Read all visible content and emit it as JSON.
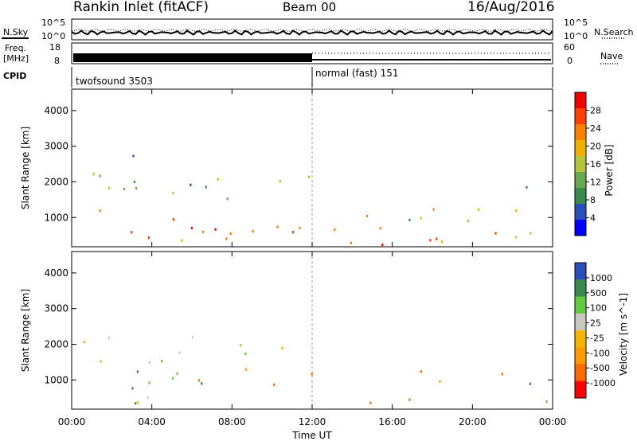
{
  "header": {
    "title": "Rankin Inlet (fitACF)",
    "beam": "Beam 00",
    "date": "16/Aug/2016"
  },
  "status_panel": {
    "nsky_label": "N.Sky",
    "nsky_ticks": [
      "10^5",
      "10^0"
    ],
    "nsearch_label": "N.Search",
    "nsearch_ticks": [
      "10^5",
      "10^0"
    ],
    "freq_label": "Freq.",
    "freq_unit": "[MHz]",
    "freq_ticks": [
      "18",
      "8"
    ],
    "nave_label": "Nave",
    "nave_ticks": [
      "60",
      "0"
    ],
    "cpid_label": "CPID",
    "cpid_segments": [
      {
        "start_hour": 0,
        "end_hour": 12,
        "label": "twofsound 3503"
      },
      {
        "start_hour": 12,
        "end_hour": 24,
        "label": "normal (fast) 151"
      }
    ]
  },
  "chart_data": [
    {
      "type": "heatmap",
      "name": "power",
      "ylabel": "Slant Range [km]",
      "yticks": [
        "1000",
        "2000",
        "3000",
        "4000"
      ],
      "ylim": [
        180,
        4600
      ],
      "colorbar": {
        "label": "Power [dB]",
        "ticks": [
          "28",
          "24",
          "20",
          "16",
          "12",
          "8",
          "4"
        ],
        "range": [
          0,
          30
        ],
        "colors": [
          "#0000ff",
          "#2850b8",
          "#3a8a50",
          "#6aa84f",
          "#b5c43a",
          "#f0b000",
          "#ff8000",
          "#ff4000",
          "#ee0000"
        ]
      },
      "regions": [
        {
          "t": [
            0.5,
            11.5
          ],
          "r": [
            1500,
            2300
          ],
          "level": 0.35
        },
        {
          "t": [
            0.5,
            11.5
          ],
          "r": [
            300,
            1300
          ],
          "level": 0.8
        },
        {
          "t": [
            2.0,
            6.0
          ],
          "r": [
            250,
            750
          ],
          "level": 0.95
        },
        {
          "t": [
            5.5,
            12.0
          ],
          "r": [
            1800,
            2200
          ],
          "level": 0.45
        },
        {
          "t": [
            3.0,
            4.5
          ],
          "r": [
            2600,
            3100
          ],
          "level": 0.2
        },
        {
          "t": [
            13.0,
            24.0
          ],
          "r": [
            300,
            1400
          ],
          "level": 0.7
        },
        {
          "t": [
            14.0,
            17.0
          ],
          "r": [
            250,
            600
          ],
          "level": 0.95
        },
        {
          "t": [
            16.0,
            22.0
          ],
          "r": [
            900,
            1300
          ],
          "level": 0.5
        },
        {
          "t": [
            22.5,
            24.0
          ],
          "r": [
            1500,
            2300
          ],
          "level": 0.3
        }
      ]
    },
    {
      "type": "heatmap",
      "name": "velocity",
      "xlabel": "Time UT",
      "xticks": [
        "00:00",
        "04:00",
        "08:00",
        "12:00",
        "16:00",
        "20:00",
        "00:00"
      ],
      "xlim_hours": [
        0,
        24
      ],
      "ylabel": "Slant Range [km]",
      "yticks": [
        "1000",
        "2000",
        "3000",
        "4000"
      ],
      "ylim": [
        180,
        4600
      ],
      "colorbar": {
        "label": "Velocity [m s^-1]",
        "ticks": [
          "1000",
          "500",
          "100",
          "25",
          "-25",
          "-100",
          "-500",
          "-1000"
        ],
        "range": [
          -1000,
          1000
        ],
        "colors": [
          "#ff0000",
          "#ff6a00",
          "#ff9a00",
          "#f5b400",
          "#c8c8c0",
          "#64c840",
          "#3a8a50",
          "#2850b8"
        ]
      },
      "regions": [
        {
          "t": [
            0.5,
            11.5
          ],
          "r": [
            1500,
            2300
          ],
          "level": 0.5
        },
        {
          "t": [
            0.5,
            6.5
          ],
          "r": [
            300,
            1300
          ],
          "level": 0.7
        },
        {
          "t": [
            6.0,
            12.0
          ],
          "r": [
            800,
            1400
          ],
          "level": 0.25
        },
        {
          "t": [
            12.5,
            17.0
          ],
          "r": [
            250,
            700
          ],
          "level": 0.3
        },
        {
          "t": [
            16.0,
            22.0
          ],
          "r": [
            900,
            1400
          ],
          "level": 0.2
        },
        {
          "t": [
            22.0,
            24.0
          ],
          "r": [
            300,
            1000
          ],
          "level": 0.8
        },
        {
          "t": [
            3.0,
            6.0
          ],
          "r": [
            300,
            900
          ],
          "level": 0.5
        }
      ]
    }
  ]
}
